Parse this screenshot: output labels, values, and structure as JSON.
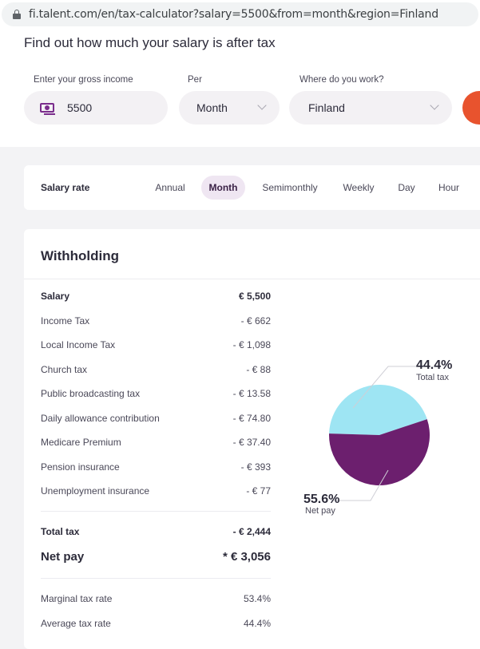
{
  "browser": {
    "url": "fi.talent.com/en/tax-calculator?salary=5500&from=month&region=Finland"
  },
  "header": {
    "headline": "Find out how much your salary is after tax",
    "income_label": "Enter your gross income",
    "income_value": "5500",
    "per_label": "Per",
    "per_value": "Month",
    "region_label": "Where do you work?",
    "region_value": "Finland"
  },
  "salary_rate": {
    "title": "Salary rate",
    "tabs": [
      "Annual",
      "Month",
      "Semimonthly",
      "Weekly",
      "Day",
      "Hour"
    ],
    "active": "Month"
  },
  "withholding": {
    "title": "Withholding",
    "rows": [
      {
        "label": "Salary",
        "value": "€ 5,500"
      },
      {
        "label": "Income Tax",
        "value": "- € 662"
      },
      {
        "label": "Local Income Tax",
        "value": "- € 1,098"
      },
      {
        "label": "Church tax",
        "value": "- € 88"
      },
      {
        "label": "Public broadcasting tax",
        "value": "- € 13.58"
      },
      {
        "label": "Daily allowance contribution",
        "value": "- € 74.80"
      },
      {
        "label": "Medicare Premium",
        "value": "- € 37.40"
      },
      {
        "label": "Pension insurance",
        "value": "- € 393"
      },
      {
        "label": "Unemployment insurance",
        "value": "- € 77"
      }
    ],
    "total_tax": {
      "label": "Total tax",
      "value": "- € 2,444"
    },
    "net_pay": {
      "label": "Net pay",
      "value": "* € 3,056"
    },
    "marginal": {
      "label": "Marginal tax rate",
      "value": "53.4%"
    },
    "average": {
      "label": "Average tax rate",
      "value": "44.4%"
    }
  },
  "chart_data": {
    "type": "pie",
    "slices": [
      {
        "label": "Total tax",
        "percent": 44.4,
        "display": "44.4%",
        "color": "#9ee5f3"
      },
      {
        "label": "Net pay",
        "percent": 55.6,
        "display": "55.6%",
        "color": "#6c1f6e"
      }
    ]
  }
}
